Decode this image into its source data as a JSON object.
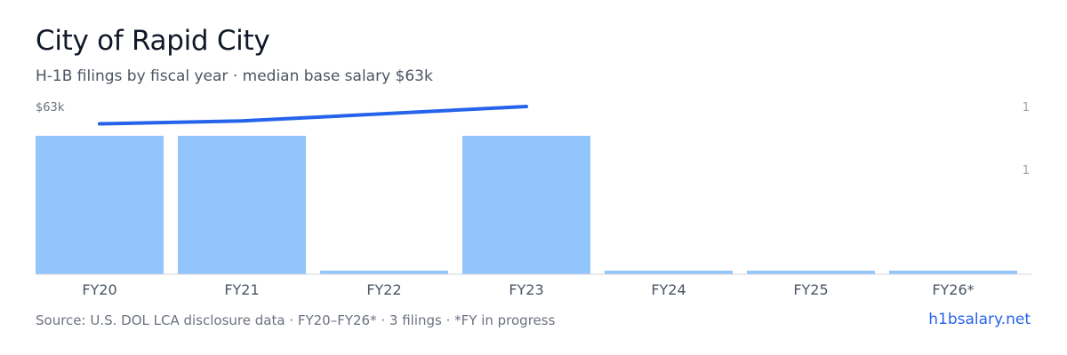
{
  "header": {
    "title": "City of Rapid City",
    "subtitle": "H-1B filings by fiscal year · median base salary $63k"
  },
  "chart_data": {
    "type": "bar",
    "categories": [
      "FY20",
      "FY21",
      "FY22",
      "FY23",
      "FY24",
      "FY25",
      "FY26*"
    ],
    "values": [
      1,
      1,
      0,
      1,
      0,
      0,
      0
    ],
    "right_axis": {
      "ticks": [
        "1",
        "1"
      ]
    },
    "salary_line": {
      "type": "line",
      "categories": [
        "FY20",
        "FY21",
        "FY23"
      ],
      "values": [
        60,
        60.5,
        63
      ],
      "ylim": [
        34,
        63
      ]
    },
    "salary_axis_label": "$63k",
    "colors": {
      "bar": "#93c5fd",
      "line": "#2563eb",
      "axis": "#d1d5db"
    }
  },
  "footer": {
    "source": "Source: U.S. DOL LCA disclosure data · FY20–FY26* · 3 filings · *FY in progress",
    "brand": "h1bsalary.net"
  }
}
